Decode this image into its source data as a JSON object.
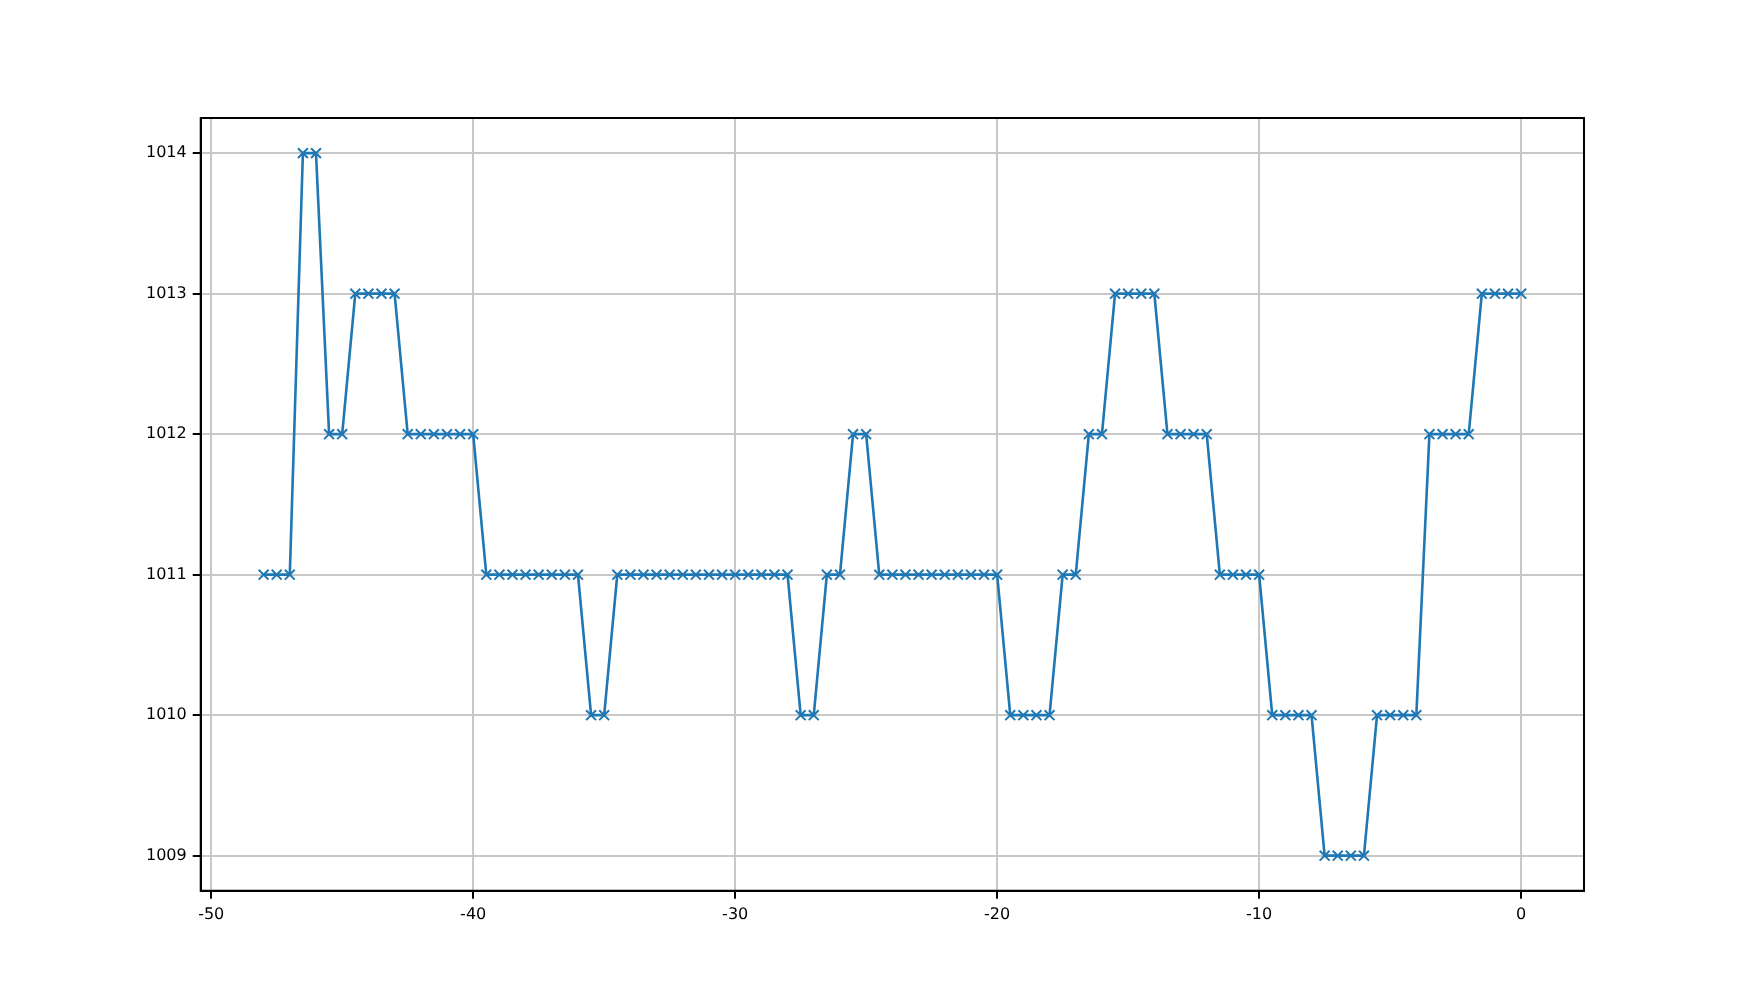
{
  "chart_data": {
    "type": "line",
    "x": [
      -48,
      -47.5,
      -47,
      -46.5,
      -46,
      -45.5,
      -45,
      -44.5,
      -44,
      -43.5,
      -43,
      -42.5,
      -42,
      -41.5,
      -41,
      -40.5,
      -40,
      -39.5,
      -39,
      -38.5,
      -38,
      -37.5,
      -37,
      -36.5,
      -36,
      -35.5,
      -35,
      -34.5,
      -34,
      -33.5,
      -33,
      -32.5,
      -32,
      -31.5,
      -31,
      -30.5,
      -30,
      -29.5,
      -29,
      -28.5,
      -28,
      -27.5,
      -27,
      -26.5,
      -26,
      -25.5,
      -25,
      -24.5,
      -24,
      -23.5,
      -23,
      -22.5,
      -22,
      -21.5,
      -21,
      -20.5,
      -20,
      -19.5,
      -19,
      -18.5,
      -18,
      -17.5,
      -17,
      -16.5,
      -16,
      -15.5,
      -15,
      -14.5,
      -14,
      -13.5,
      -13,
      -12.5,
      -12,
      -11.5,
      -11,
      -10.5,
      -10,
      -9.5,
      -9,
      -8.5,
      -8,
      -7.5,
      -7,
      -6.5,
      -6,
      -5.5,
      -5,
      -4.5,
      -4,
      -3.5,
      -3,
      -2.5,
      -2,
      -1.5,
      -1,
      -0.5,
      0
    ],
    "series": [
      {
        "color": "#1f77b4",
        "values": [
          1011,
          1011,
          1011,
          1014,
          1014,
          1012,
          1012,
          1013,
          1013,
          1013,
          1013,
          1012,
          1012,
          1012,
          1012,
          1012,
          1012,
          1011,
          1011,
          1011,
          1011,
          1011,
          1011,
          1011,
          1011,
          1010,
          1010,
          1011,
          1011,
          1011,
          1011,
          1011,
          1011,
          1011,
          1011,
          1011,
          1011,
          1011,
          1011,
          1011,
          1011,
          1010,
          1010,
          1011,
          1011,
          1012,
          1012,
          1011,
          1011,
          1011,
          1011,
          1011,
          1011,
          1011,
          1011,
          1011,
          1011,
          1010,
          1010,
          1010,
          1010,
          1011,
          1011,
          1012,
          1012,
          1013,
          1013,
          1013,
          1013,
          1012,
          1012,
          1012,
          1012,
          1011,
          1011,
          1011,
          1011,
          1010,
          1010,
          1010,
          1010,
          1009,
          1009,
          1009,
          1009,
          1010,
          1010,
          1010,
          1010,
          1012,
          1012,
          1012,
          1012,
          1013,
          1013,
          1013,
          1013
        ]
      }
    ],
    "xlim": [
      -50.4,
      2.4
    ],
    "ylim": [
      1008.75,
      1014.25
    ],
    "xticks": [
      -50,
      -40,
      -30,
      -20,
      -10,
      0
    ],
    "yticks": [
      1009,
      1010,
      1011,
      1012,
      1013,
      1014
    ],
    "grid": true,
    "marker": "cross",
    "line_style": "solid",
    "legend": false
  }
}
